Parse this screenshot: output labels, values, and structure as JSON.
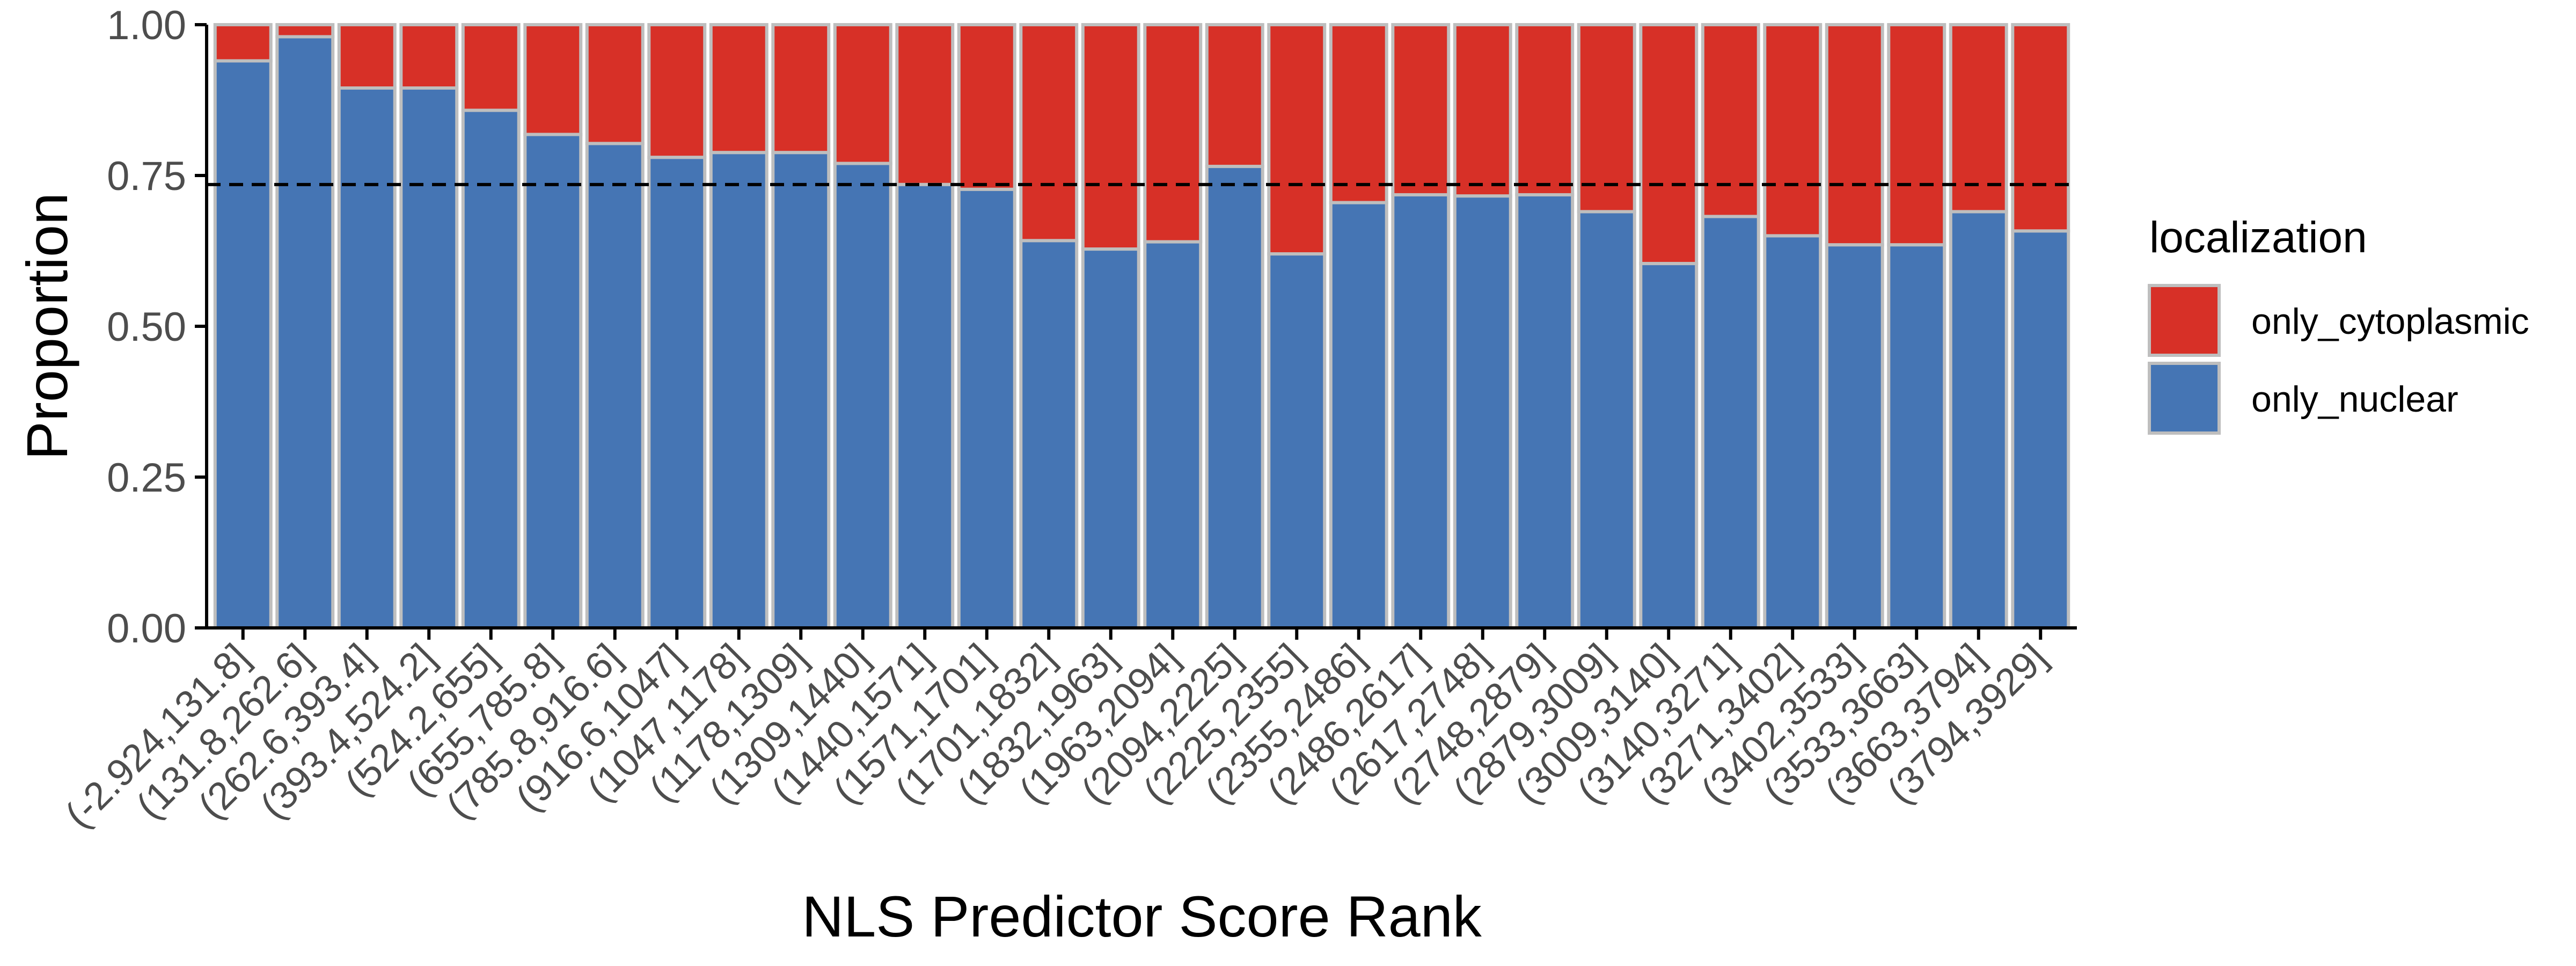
{
  "chart_data": {
    "type": "bar",
    "stacked": true,
    "normalized": true,
    "xlabel": "NLS Predictor Score Rank",
    "ylabel": "Proportion",
    "ylim": [
      0,
      1
    ],
    "y_ticks": [
      "0.00",
      "0.25",
      "0.50",
      "0.75",
      "1.00"
    ],
    "y_tick_values": [
      0,
      0.25,
      0.5,
      0.75,
      1
    ],
    "reference_line": {
      "y": 0.735,
      "style": "dashed",
      "color": "#000000"
    },
    "categories": [
      "(-2.924,131.8]",
      "(131.8,262.6]",
      "(262.6,393.4]",
      "(393.4,524.2]",
      "(524.2,655]",
      "(655,785.8]",
      "(785.8,916.6]",
      "(916.6,1047]",
      "(1047,1178]",
      "(1178,1309]",
      "(1309,1440]",
      "(1440,1571]",
      "(1571,1701]",
      "(1701,1832]",
      "(1832,1963]",
      "(1963,2094]",
      "(2094,2225]",
      "(2225,2355]",
      "(2355,2486]",
      "(2486,2617]",
      "(2617,2748]",
      "(2748,2879]",
      "(2879,3009]",
      "(3009,3140]",
      "(3140,3271]",
      "(3271,3402]",
      "(3402,3533]",
      "(3533,3663]",
      "(3663,3794]",
      "(3794,3929]"
    ],
    "series": [
      {
        "name": "only_nuclear",
        "color": "#4575B4",
        "values": [
          0.94,
          0.98,
          0.895,
          0.895,
          0.858,
          0.818,
          0.803,
          0.78,
          0.788,
          0.788,
          0.77,
          0.735,
          0.727,
          0.642,
          0.628,
          0.64,
          0.765,
          0.62,
          0.705,
          0.718,
          0.716,
          0.718,
          0.69,
          0.604,
          0.682,
          0.65,
          0.635,
          0.635,
          0.69,
          0.658
        ]
      },
      {
        "name": "only_cytoplasmic",
        "color": "#D73027",
        "values": [
          0.06,
          0.02,
          0.105,
          0.105,
          0.142,
          0.182,
          0.197,
          0.22,
          0.212,
          0.212,
          0.23,
          0.265,
          0.273,
          0.358,
          0.372,
          0.36,
          0.235,
          0.38,
          0.295,
          0.282,
          0.284,
          0.282,
          0.31,
          0.396,
          0.318,
          0.35,
          0.365,
          0.365,
          0.31,
          0.342
        ]
      }
    ],
    "legend": {
      "title": "localization",
      "position": "right",
      "items": [
        {
          "label": "only_cytoplasmic",
          "color": "#D73027"
        },
        {
          "label": "only_nuclear",
          "color": "#4575B4"
        }
      ]
    },
    "grid": false,
    "bar_outline_color": "#BEBEBE"
  }
}
